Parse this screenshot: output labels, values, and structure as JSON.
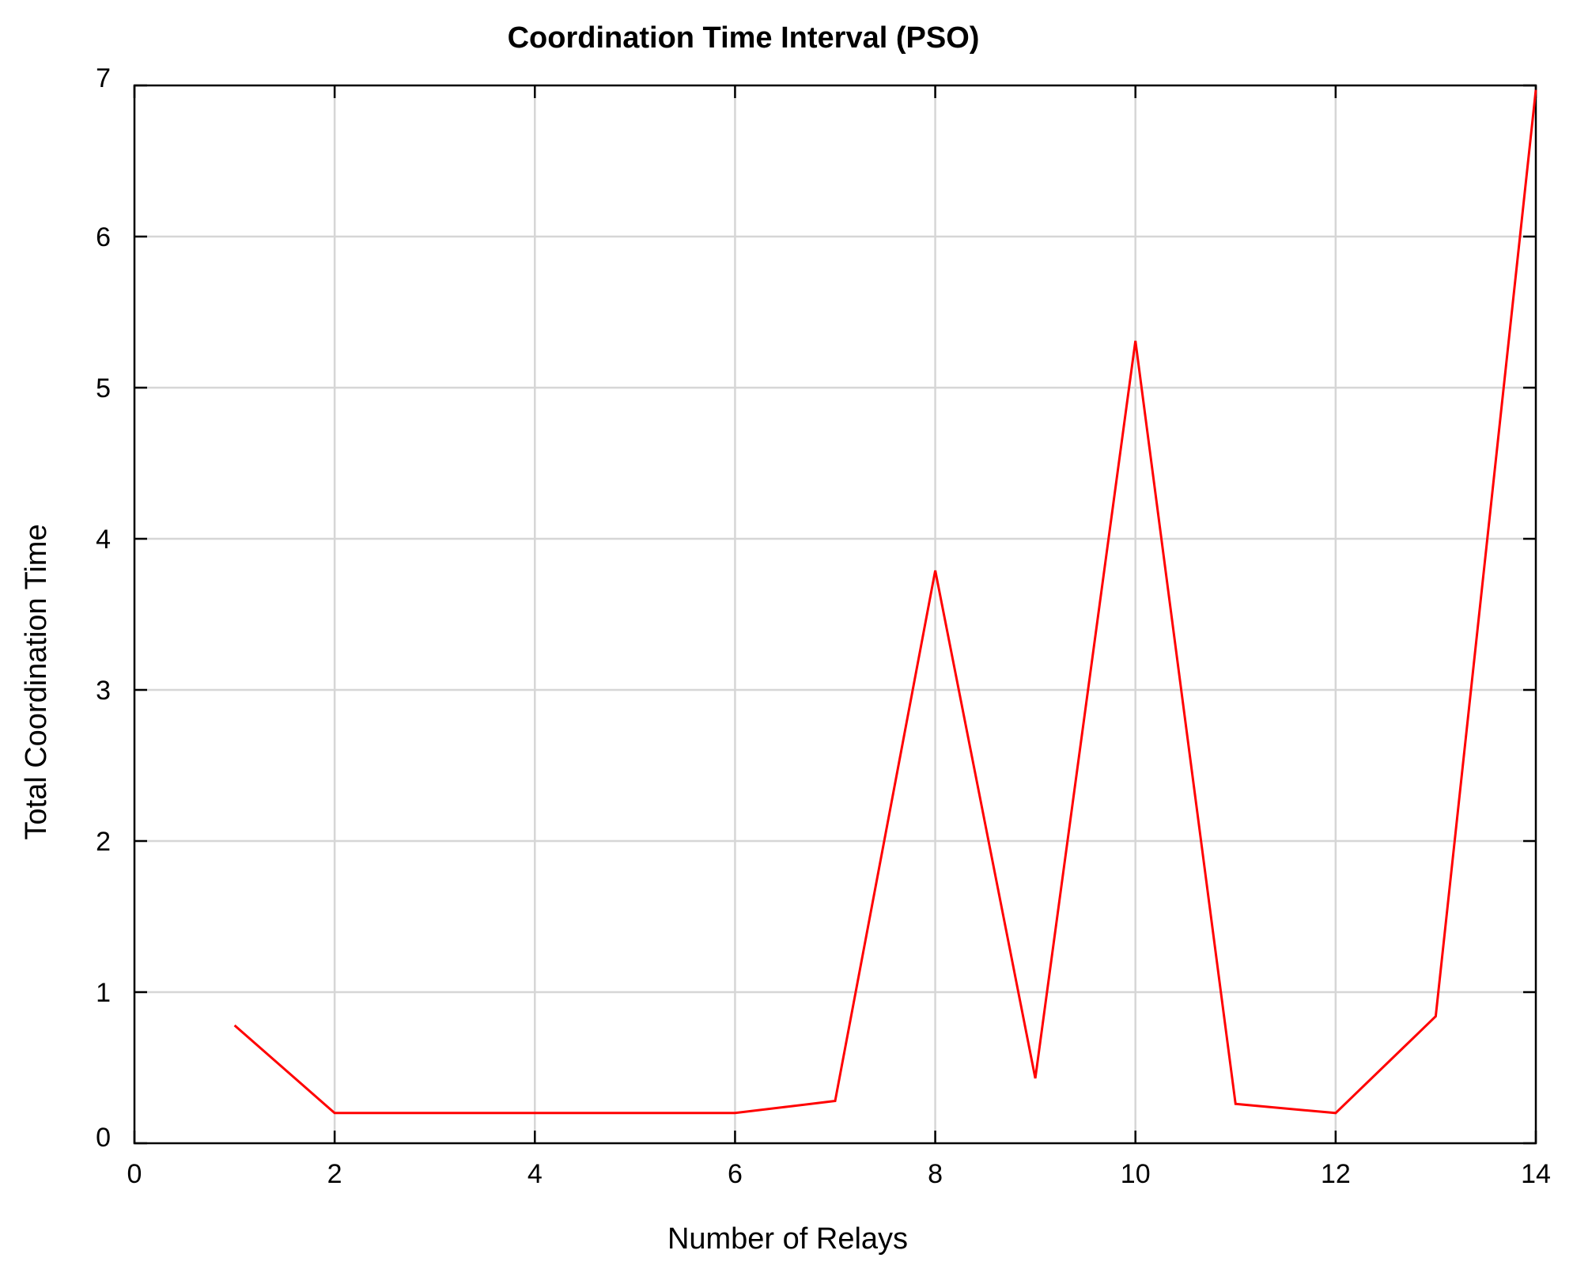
{
  "chart_data": {
    "type": "line",
    "title": "Coordination Time Interval (PSO)",
    "xlabel": "Number of Relays",
    "ylabel": "Total Coordination Time",
    "xlim": [
      0,
      14
    ],
    "ylim": [
      0,
      7
    ],
    "xticks": [
      0,
      2,
      4,
      6,
      8,
      10,
      12,
      14
    ],
    "yticks": [
      0,
      1,
      2,
      3,
      4,
      5,
      6,
      7
    ],
    "grid": true,
    "series": [
      {
        "color": "#ff0000",
        "x": [
          1,
          2,
          3,
          4,
          5,
          6,
          7,
          8,
          9,
          10,
          11,
          12,
          13,
          14
        ],
        "y": [
          0.78,
          0.2,
          0.2,
          0.2,
          0.2,
          0.2,
          0.28,
          3.79,
          0.43,
          5.31,
          0.26,
          0.2,
          0.84,
          6.97
        ]
      }
    ]
  }
}
